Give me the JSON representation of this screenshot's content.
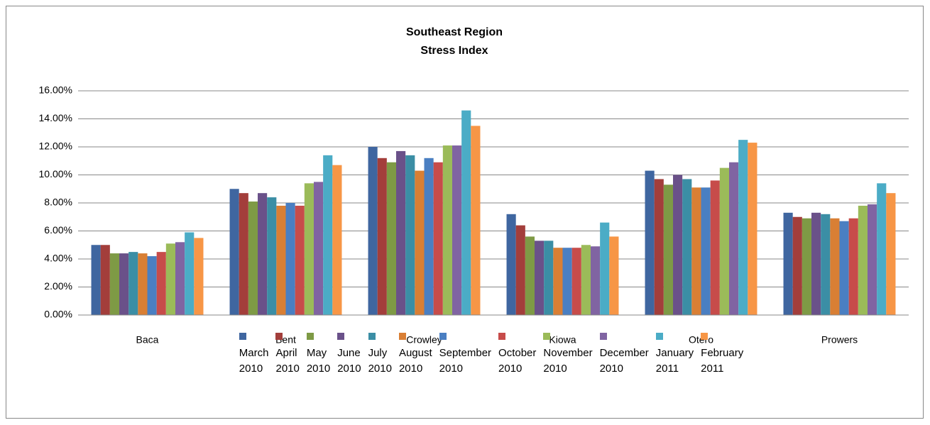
{
  "chart_data": {
    "type": "bar",
    "title": "Southeast Region",
    "subtitle": "Stress Index",
    "categories": [
      "Baca",
      "Bent",
      "Crowley",
      "Kiowa",
      "Otero",
      "Prowers"
    ],
    "series": [
      {
        "name": "March 2010",
        "color": "#3f66a0",
        "values": [
          5.0,
          9.0,
          12.0,
          7.2,
          10.3,
          7.3
        ]
      },
      {
        "name": "April 2010",
        "color": "#a33e3b",
        "values": [
          5.0,
          8.7,
          11.2,
          6.4,
          9.7,
          7.0
        ]
      },
      {
        "name": "May 2010",
        "color": "#7e9a45",
        "values": [
          4.4,
          8.1,
          10.9,
          5.6,
          9.3,
          6.9
        ]
      },
      {
        "name": "June 2010",
        "color": "#6a5189",
        "values": [
          4.4,
          8.7,
          11.7,
          5.3,
          10.0,
          7.3
        ]
      },
      {
        "name": "July 2010",
        "color": "#3b8ea5",
        "values": [
          4.5,
          8.4,
          11.4,
          5.3,
          9.7,
          7.2
        ]
      },
      {
        "name": "August 2010",
        "color": "#d97f34",
        "values": [
          4.4,
          7.8,
          10.3,
          4.8,
          9.1,
          6.9
        ]
      },
      {
        "name": "September 2010",
        "color": "#4a7fc2",
        "values": [
          4.2,
          8.0,
          11.2,
          4.8,
          9.1,
          6.7
        ]
      },
      {
        "name": "October 2010",
        "color": "#c74c4a",
        "values": [
          4.5,
          7.8,
          10.9,
          4.8,
          9.6,
          6.9
        ]
      },
      {
        "name": "November 2010",
        "color": "#9bbb59",
        "values": [
          5.1,
          9.4,
          12.1,
          5.0,
          10.5,
          7.8
        ]
      },
      {
        "name": "December 2010",
        "color": "#8064a2",
        "values": [
          5.2,
          9.5,
          12.1,
          4.9,
          10.9,
          7.9
        ]
      },
      {
        "name": "January 2011",
        "color": "#4bacc6",
        "values": [
          5.9,
          11.4,
          14.6,
          6.6,
          12.5,
          9.4
        ]
      },
      {
        "name": "February 2011",
        "color": "#f79646",
        "values": [
          5.5,
          10.7,
          13.5,
          5.6,
          12.3,
          8.7
        ]
      }
    ],
    "ylim": [
      0,
      16
    ],
    "yticks": [
      {
        "value": 0,
        "label": "0.00%"
      },
      {
        "value": 2,
        "label": "2.00%"
      },
      {
        "value": 4,
        "label": "4.00%"
      },
      {
        "value": 6,
        "label": "6.00%"
      },
      {
        "value": 8,
        "label": "8.00%"
      },
      {
        "value": 10,
        "label": "10.00%"
      },
      {
        "value": 12,
        "label": "12.00%"
      },
      {
        "value": 14,
        "label": "14.00%"
      },
      {
        "value": 16,
        "label": "16.00%"
      }
    ],
    "grid": true
  }
}
